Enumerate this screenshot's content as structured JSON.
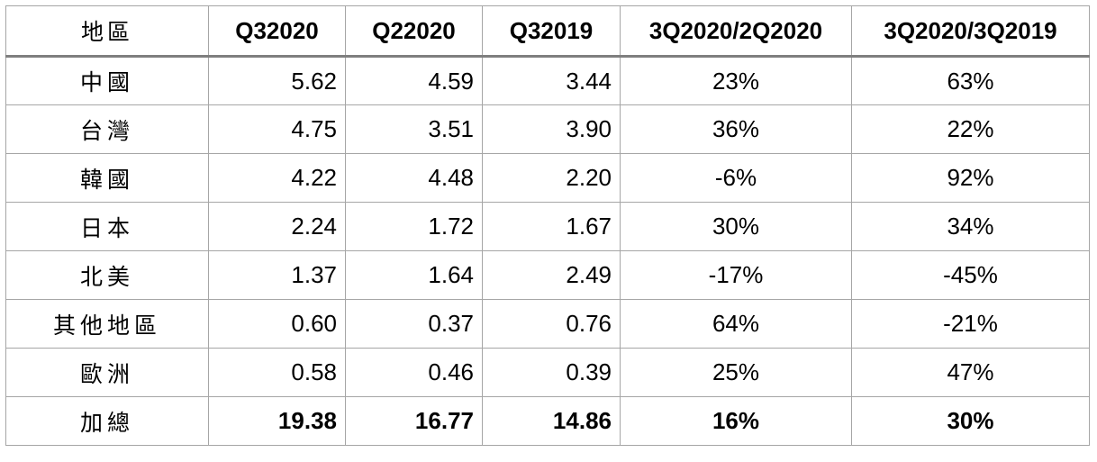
{
  "table": {
    "headers": [
      "地區",
      "Q32020",
      "Q22020",
      "Q32019",
      "3Q2020/2Q2020",
      "3Q2020/3Q2019"
    ],
    "rows": [
      {
        "region": "中國",
        "q3_2020": "5.62",
        "q2_2020": "4.59",
        "q3_2019": "3.44",
        "qoq": "23%",
        "yoy": "63%"
      },
      {
        "region": "台灣",
        "q3_2020": "4.75",
        "q2_2020": "3.51",
        "q3_2019": "3.90",
        "qoq": "36%",
        "yoy": "22%"
      },
      {
        "region": "韓國",
        "q3_2020": "4.22",
        "q2_2020": "4.48",
        "q3_2019": "2.20",
        "qoq": "-6%",
        "yoy": "92%"
      },
      {
        "region": "日本",
        "q3_2020": "2.24",
        "q2_2020": "1.72",
        "q3_2019": "1.67",
        "qoq": "30%",
        "yoy": "34%"
      },
      {
        "region": "北美",
        "q3_2020": "1.37",
        "q2_2020": "1.64",
        "q3_2019": "2.49",
        "qoq": "-17%",
        "yoy": "-45%"
      },
      {
        "region": "其他地區",
        "q3_2020": "0.60",
        "q2_2020": "0.37",
        "q3_2019": "0.76",
        "qoq": "64%",
        "yoy": "-21%"
      },
      {
        "region": "歐洲",
        "q3_2020": "0.58",
        "q2_2020": "0.46",
        "q3_2019": "0.39",
        "qoq": "25%",
        "yoy": "47%"
      }
    ],
    "total": {
      "region": "加總",
      "q3_2020": "19.38",
      "q2_2020": "16.77",
      "q3_2019": "14.86",
      "qoq": "16%",
      "yoy": "30%"
    }
  }
}
